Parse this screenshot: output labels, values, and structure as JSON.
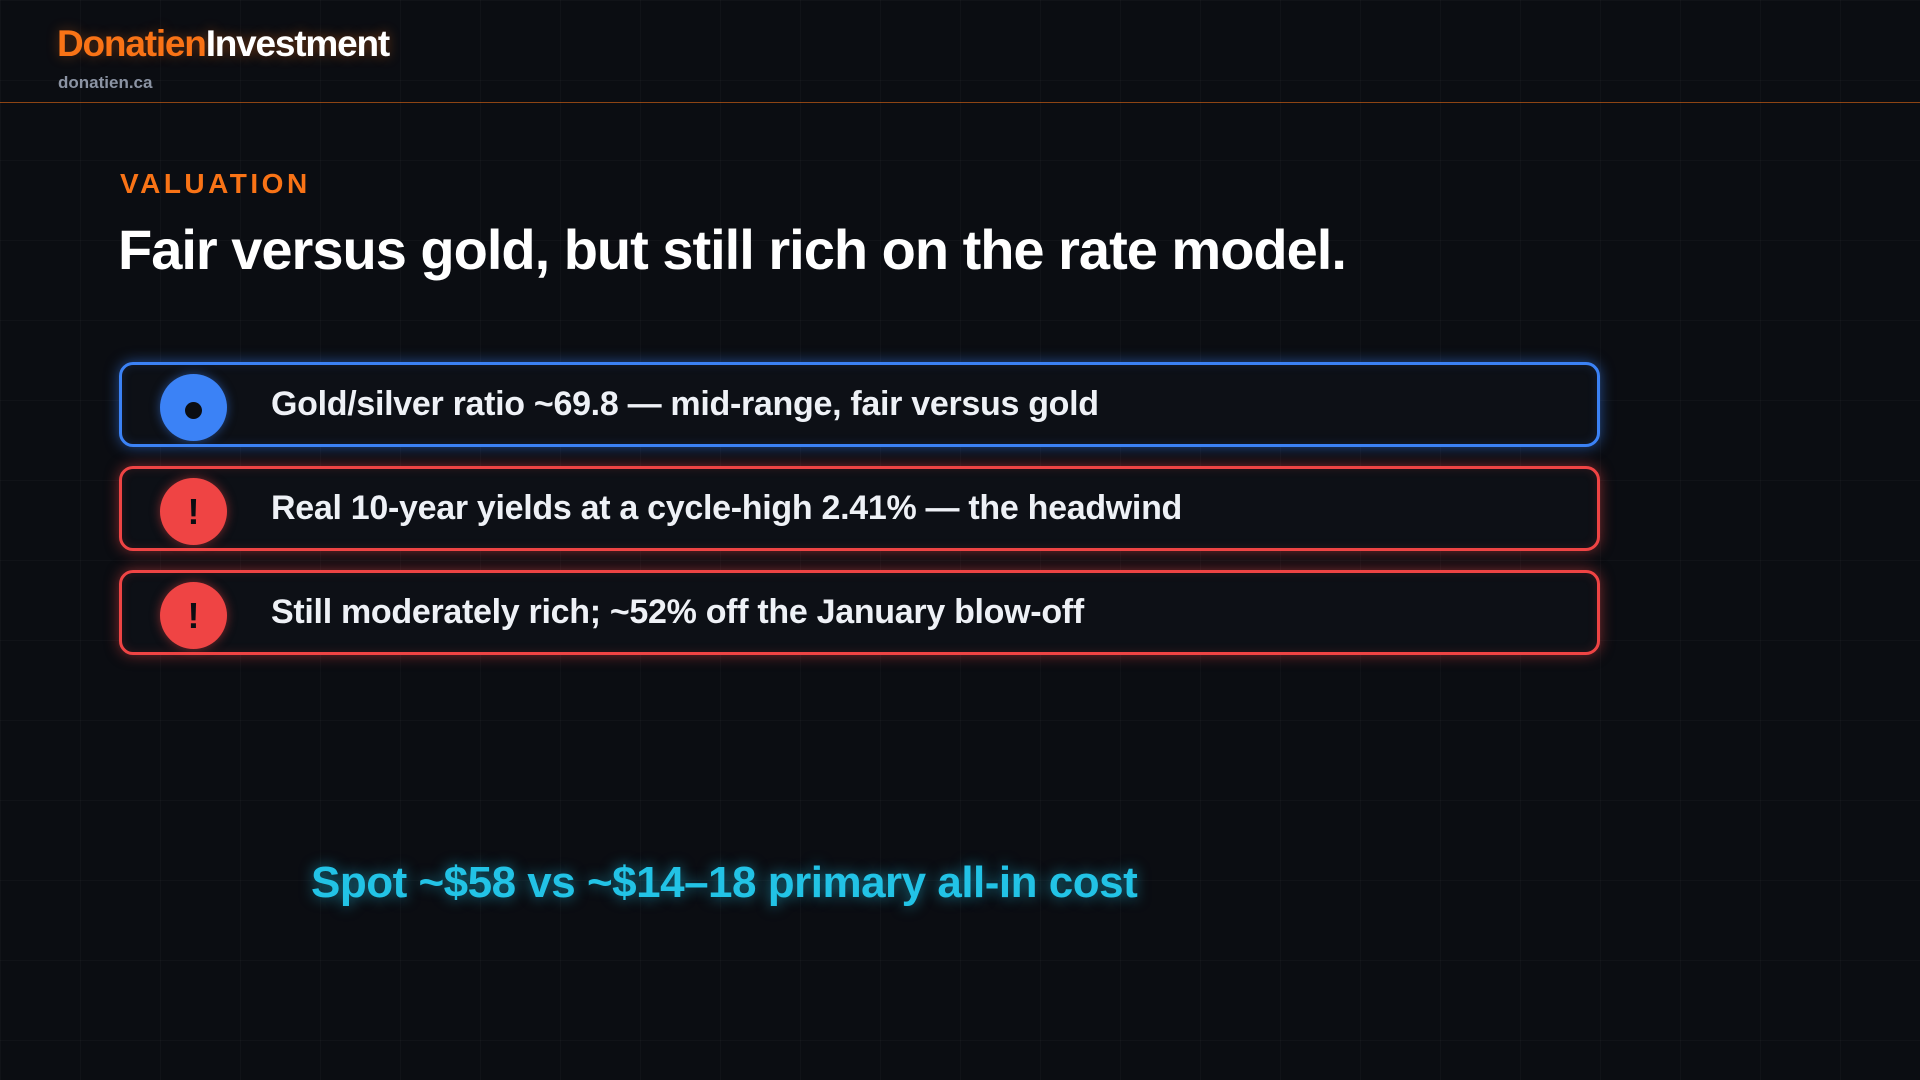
{
  "header": {
    "brand_part_1": "Donatien",
    "brand_part_2": "Investment",
    "site_url": "donatien.ca"
  },
  "section": {
    "eyebrow": "VALUATION",
    "title": "Fair versus gold, but still rich on the rate model."
  },
  "cards": [
    {
      "kind": "info",
      "icon": "dot-icon",
      "text": "Gold/silver ratio ~69.8 — mid-range, fair versus gold"
    },
    {
      "kind": "warning",
      "icon": "exclamation-icon",
      "text": "Real 10-year yields at a cycle-high 2.41% — the headwind"
    },
    {
      "kind": "warning",
      "icon": "exclamation-icon",
      "text": "Still moderately rich; ~52% off the January blow-off"
    }
  ],
  "callout": {
    "text": "Spot ~$58 vs ~$14–18 primary all-in cost"
  },
  "colors": {
    "background": "#0b0d12",
    "accent_orange": "#f97316",
    "info_blue": "#3b82f6",
    "warning_red": "#ef4444",
    "callout_cyan": "#22c3e6"
  }
}
